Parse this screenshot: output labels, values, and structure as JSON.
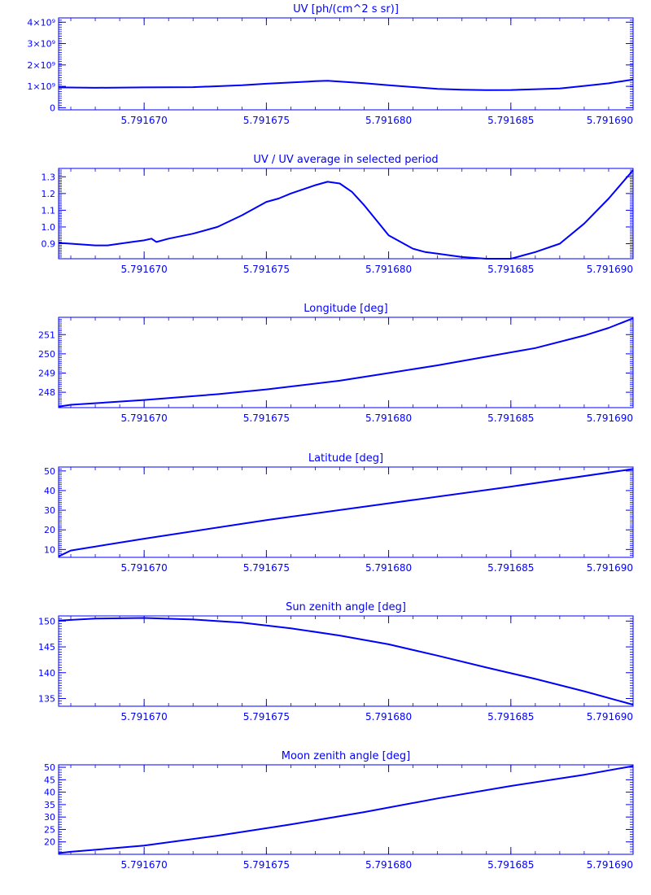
{
  "chart_data": [
    {
      "type": "line",
      "title": "UV [ph/(cm^2 s sr)]",
      "xlim": [
        5.7916665,
        5.79169
      ],
      "ylim": [
        -0.1,
        4.2
      ],
      "y_ticks": [
        {
          "value": 0,
          "label": "0"
        },
        {
          "value": 1,
          "label": "1×10⁹"
        },
        {
          "value": 2,
          "label": "2×10⁹"
        },
        {
          "value": 3,
          "label": "3×10⁹"
        },
        {
          "value": 4,
          "label": "4×10⁹"
        }
      ],
      "y_minor_count": 40,
      "series": [
        {
          "x": [
            5.7916665,
            5.791668,
            5.79167,
            5.791672,
            5.791674,
            5.791675,
            5.791676,
            5.791677,
            5.7916775,
            5.791679,
            5.79168,
            5.791682,
            5.791683,
            5.791684,
            5.791685,
            5.791687,
            5.791688,
            5.791689,
            5.79169
          ],
          "y": [
            0.95,
            0.93,
            0.95,
            0.96,
            1.05,
            1.12,
            1.18,
            1.24,
            1.26,
            1.15,
            1.05,
            0.88,
            0.84,
            0.82,
            0.83,
            0.9,
            1.02,
            1.14,
            1.32
          ]
        }
      ]
    },
    {
      "type": "line",
      "title": "UV / UV average in selected period",
      "xlim": [
        5.7916665,
        5.79169
      ],
      "ylim": [
        0.81,
        1.35
      ],
      "y_ticks": [
        {
          "value": 0.9,
          "label": "0.9"
        },
        {
          "value": 1.0,
          "label": "1.0"
        },
        {
          "value": 1.1,
          "label": "1.1"
        },
        {
          "value": 1.2,
          "label": "1.2"
        },
        {
          "value": 1.3,
          "label": "1.3"
        }
      ],
      "y_minor_count": 54,
      "series": [
        {
          "x": [
            5.7916665,
            5.791667,
            5.791668,
            5.7916685,
            5.791669,
            5.7916695,
            5.79167,
            5.7916703,
            5.7916705,
            5.791671,
            5.791672,
            5.791673,
            5.791674,
            5.791675,
            5.7916755,
            5.791676,
            5.791677,
            5.7916775,
            5.791678,
            5.7916785,
            5.791679,
            5.7916795,
            5.79168,
            5.791681,
            5.7916815,
            5.791682,
            5.791683,
            5.791684,
            5.791685,
            5.7916855,
            5.791686,
            5.791687,
            5.791688,
            5.791689,
            5.79169
          ],
          "y": [
            0.905,
            0.9,
            0.89,
            0.89,
            0.9,
            0.91,
            0.92,
            0.93,
            0.91,
            0.93,
            0.96,
            1.0,
            1.07,
            1.15,
            1.17,
            1.2,
            1.25,
            1.27,
            1.26,
            1.21,
            1.13,
            1.04,
            0.95,
            0.87,
            0.85,
            0.84,
            0.82,
            0.81,
            0.81,
            0.83,
            0.85,
            0.9,
            1.02,
            1.17,
            1.34
          ]
        }
      ]
    },
    {
      "type": "line",
      "title": "Longitude [deg]",
      "xlim": [
        5.7916665,
        5.79169
      ],
      "ylim": [
        247.2,
        251.9
      ],
      "y_ticks": [
        {
          "value": 248,
          "label": "248"
        },
        {
          "value": 249,
          "label": "249"
        },
        {
          "value": 250,
          "label": "250"
        },
        {
          "value": 251,
          "label": "251"
        }
      ],
      "y_minor_count": 47,
      "series": [
        {
          "x": [
            5.7916665,
            5.791667,
            5.79167,
            5.791673,
            5.791675,
            5.791678,
            5.79168,
            5.791682,
            5.791684,
            5.791686,
            5.791688,
            5.791689,
            5.79169
          ],
          "y": [
            247.25,
            247.35,
            247.6,
            247.9,
            248.15,
            248.6,
            249.0,
            249.4,
            249.85,
            250.3,
            250.95,
            251.35,
            251.85
          ]
        }
      ]
    },
    {
      "type": "line",
      "title": "Latitude [deg]",
      "xlim": [
        5.7916665,
        5.79169
      ],
      "ylim": [
        6,
        52
      ],
      "y_ticks": [
        {
          "value": 10,
          "label": "10"
        },
        {
          "value": 20,
          "label": "20"
        },
        {
          "value": 30,
          "label": "30"
        },
        {
          "value": 40,
          "label": "40"
        },
        {
          "value": 50,
          "label": "50"
        }
      ],
      "y_minor_count": 46,
      "series": [
        {
          "x": [
            5.7916665,
            5.791667,
            5.79167,
            5.791675,
            5.79168,
            5.791685,
            5.79169
          ],
          "y": [
            6.5,
            9.5,
            15.5,
            25,
            33.5,
            42,
            51
          ]
        }
      ]
    },
    {
      "type": "line",
      "title": "Sun zenith angle [deg]",
      "xlim": [
        5.7916665,
        5.79169
      ],
      "ylim": [
        133.5,
        151
      ],
      "y_ticks": [
        {
          "value": 135,
          "label": "135"
        },
        {
          "value": 140,
          "label": "140"
        },
        {
          "value": 145,
          "label": "145"
        },
        {
          "value": 150,
          "label": "150"
        }
      ],
      "y_minor_count": 35,
      "series": [
        {
          "x": [
            5.7916665,
            5.791668,
            5.79167,
            5.791672,
            5.791674,
            5.791676,
            5.791678,
            5.79168,
            5.791682,
            5.791684,
            5.791686,
            5.791688,
            5.79169
          ],
          "y": [
            150.1,
            150.5,
            150.6,
            150.3,
            149.7,
            148.6,
            147.2,
            145.5,
            143.3,
            141.0,
            138.8,
            136.4,
            133.8
          ]
        }
      ]
    },
    {
      "type": "line",
      "title": "Moon zenith angle [deg]",
      "xlim": [
        5.7916665,
        5.79169
      ],
      "ylim": [
        15,
        51
      ],
      "y_ticks": [
        {
          "value": 20,
          "label": "20"
        },
        {
          "value": 25,
          "label": "25"
        },
        {
          "value": 30,
          "label": "30"
        },
        {
          "value": 35,
          "label": "35"
        },
        {
          "value": 40,
          "label": "40"
        },
        {
          "value": 45,
          "label": "45"
        },
        {
          "value": 50,
          "label": "50"
        }
      ],
      "y_minor_count": 36,
      "series": [
        {
          "x": [
            5.7916665,
            5.791667,
            5.79167,
            5.791673,
            5.791676,
            5.791679,
            5.791682,
            5.791685,
            5.791688,
            5.79169
          ],
          "y": [
            15.5,
            16.0,
            18.5,
            22.5,
            27.0,
            32.0,
            37.5,
            42.5,
            47.0,
            50.5
          ]
        }
      ]
    }
  ],
  "x_ticks": [
    {
      "value": 5.79167,
      "label": "5.791670"
    },
    {
      "value": 5.791675,
      "label": "5.791675"
    },
    {
      "value": 5.79168,
      "label": "5.791680"
    },
    {
      "value": 5.791685,
      "label": "5.791685"
    },
    {
      "value": 5.79169,
      "label": "5.791690"
    }
  ],
  "x_minor_step": 1e-06,
  "colors": {
    "ink": "#0000ff",
    "background": "#ffffff"
  }
}
